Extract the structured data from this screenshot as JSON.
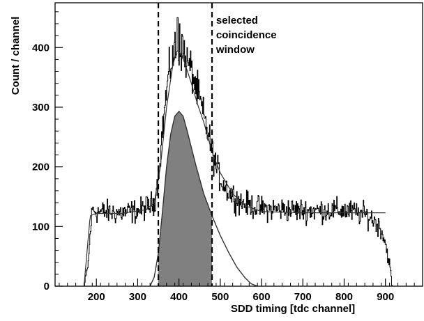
{
  "chart_data": {
    "type": "line",
    "title": "",
    "xlabel": "SDD timing [tdc channel]",
    "ylabel": "Count / channel",
    "xlim": [
      100,
      990
    ],
    "ylim": [
      0,
      475
    ],
    "x_ticks": [
      200,
      300,
      400,
      500,
      600,
      700,
      800,
      900
    ],
    "y_ticks": [
      0,
      100,
      200,
      300,
      400
    ],
    "grid": false,
    "legend": "none",
    "annotation": {
      "lines": [
        "selected",
        "coincidence",
        "window"
      ],
      "x": 490,
      "y": 440
    },
    "coincidence_window": [
      350,
      480
    ],
    "series": [
      {
        "style": "noisy-histogram",
        "color": "#000000",
        "x": [
          100,
          170,
          180,
          185,
          190,
          200,
          260,
          300,
          320,
          340,
          350,
          360,
          370,
          380,
          390,
          400,
          410,
          420,
          430,
          440,
          450,
          460,
          470,
          480,
          490,
          500,
          520,
          550,
          600,
          700,
          800,
          850,
          870,
          890,
          900,
          910,
          915,
          990
        ],
        "y": [
          0,
          0,
          40,
          95,
          130,
          125,
          123,
          126,
          132,
          140,
          190,
          265,
          330,
          375,
          395,
          392,
          385,
          375,
          360,
          335,
          310,
          282,
          255,
          225,
          198,
          180,
          158,
          140,
          130,
          127,
          127,
          120,
          112,
          95,
          70,
          35,
          0,
          0
        ],
        "spikes": [
          [
            396,
            450
          ],
          [
            401,
            440
          ],
          [
            407,
            422
          ],
          [
            388,
            408
          ],
          [
            412,
            412
          ]
        ]
      },
      {
        "style": "smooth-fit",
        "color": "#333333",
        "x": [
          170,
          185,
          200,
          260,
          320,
          340,
          355,
          370,
          385,
          395,
          405,
          415,
          430,
          445,
          460,
          480,
          500,
          530,
          560,
          600,
          700,
          800,
          870,
          900
        ],
        "y": [
          0,
          118,
          122,
          122,
          128,
          140,
          200,
          300,
          370,
          395,
          390,
          372,
          340,
          305,
          275,
          225,
          190,
          155,
          135,
          125,
          123,
          123,
          123,
          123
        ]
      },
      {
        "style": "filled-peak",
        "color": "#333333",
        "fill": "#808080",
        "x": [
          330,
          340,
          350,
          360,
          370,
          380,
          390,
          400,
          410,
          420,
          440,
          460,
          480,
          500,
          520,
          540,
          560,
          575,
          590
        ],
        "y": [
          0,
          15,
          55,
          125,
          200,
          255,
          285,
          293,
          285,
          260,
          205,
          155,
          118,
          85,
          57,
          32,
          14,
          4,
          0
        ]
      }
    ]
  }
}
